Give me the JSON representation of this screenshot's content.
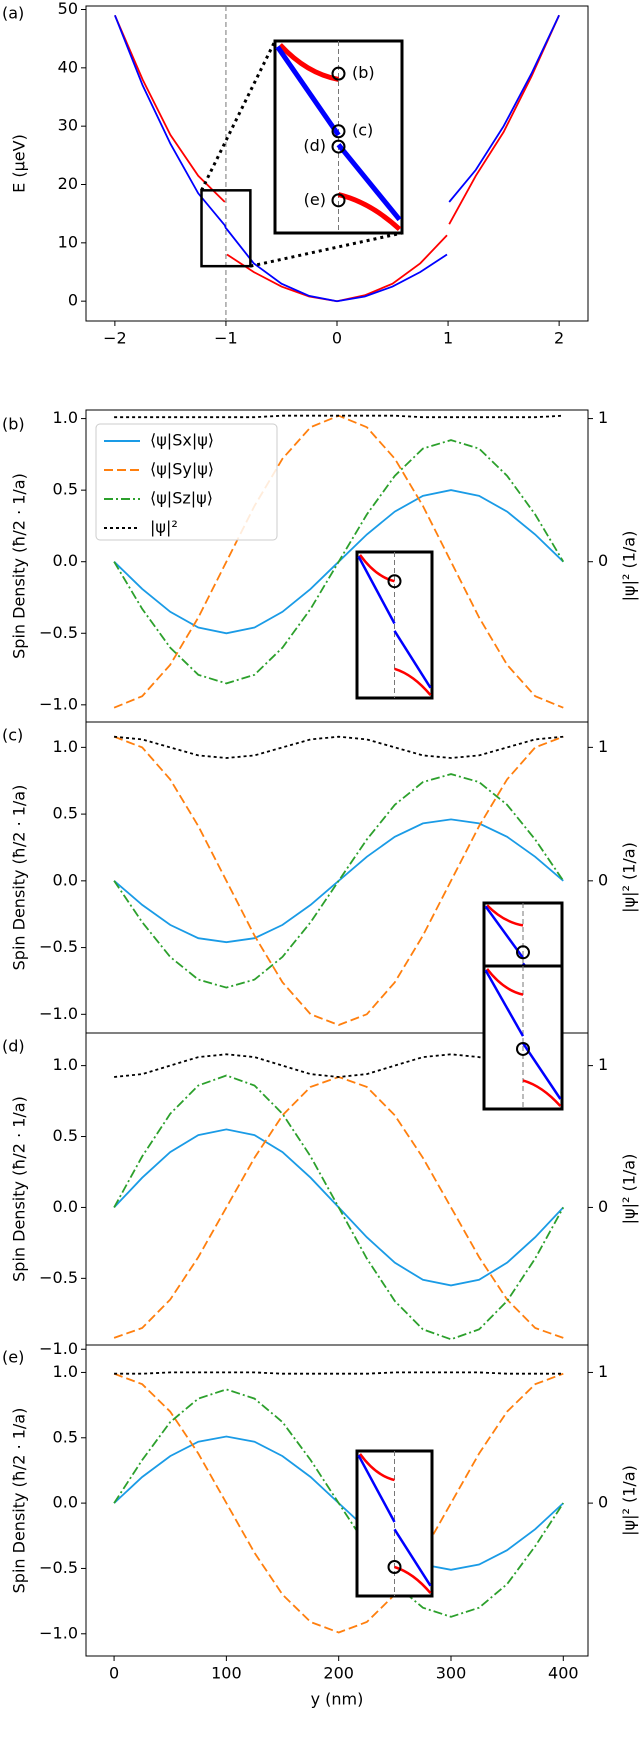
{
  "chart_data": [
    {
      "type": "line",
      "panel_label": "(a)",
      "ylabel": "E (μeV)",
      "x": [
        -2,
        -1.75,
        -1.5,
        -1.25,
        -1.01,
        -1,
        -0.99,
        -0.75,
        -0.5,
        -0.25,
        0,
        0.25,
        0.5,
        0.75,
        0.99,
        1,
        1.01,
        1.25,
        1.5,
        1.75,
        2
      ],
      "series": [
        {
          "color": "#ff0000",
          "dash": "solid",
          "values": [
            49,
            38,
            28.5,
            21.5,
            17,
            null,
            8,
            5,
            2.5,
            0.8,
            0,
            1,
            3,
            6.5,
            11.3,
            null,
            13.2,
            21.5,
            29,
            38.5,
            49
          ]
        },
        {
          "color": "#0000ff",
          "dash": "solid",
          "values": [
            49,
            37,
            27,
            18.5,
            13,
            12.5,
            12.3,
            6.5,
            3,
            0.9,
            0,
            0.8,
            2.5,
            5,
            8,
            null,
            17,
            22.5,
            30,
            39,
            49
          ]
        }
      ],
      "vlines": [
        -1
      ],
      "annotations": [
        "(b)",
        "(c)",
        "(d)",
        "(e)"
      ],
      "xlim": [
        -2.26,
        2.26
      ],
      "ylim": [
        -3.4,
        50.6
      ],
      "xticks": [
        {
          "value": -2,
          "label": "−2"
        },
        {
          "value": -1,
          "label": "−1"
        },
        0,
        1,
        2
      ],
      "yticks": [
        0,
        10,
        20,
        30,
        40,
        50
      ]
    },
    {
      "type": "line",
      "panel_label": "(b)",
      "ylabel": "Spin Density (ħ/2 · 1/a)",
      "y2label": "|ψ|² (1/a)",
      "x": [
        0,
        25,
        50,
        75,
        100,
        125,
        150,
        175,
        200,
        225,
        250,
        275,
        300,
        325,
        350,
        375,
        400
      ],
      "series": [
        {
          "name": "⟨ψ|Sx|ψ⟩",
          "color": "#1a9be6",
          "dash": "solid",
          "values": [
            0,
            -0.19,
            -0.35,
            -0.46,
            -0.5,
            -0.46,
            -0.35,
            -0.19,
            0,
            0.19,
            0.35,
            0.46,
            0.5,
            0.46,
            0.35,
            0.19,
            0
          ]
        },
        {
          "name": "⟨ψ|Sy|ψ⟩",
          "color": "#ff7f0e",
          "dash": "dashed",
          "values": [
            -1.02,
            -0.94,
            -0.72,
            -0.39,
            0,
            0.39,
            0.72,
            0.94,
            1.02,
            0.94,
            0.72,
            0.39,
            0,
            -0.39,
            -0.72,
            -0.94,
            -1.02
          ]
        },
        {
          "name": "⟨ψ|Sz|ψ⟩",
          "color": "#2ca02c",
          "dash": "dashdot",
          "values": [
            0,
            -0.33,
            -0.6,
            -0.79,
            -0.85,
            -0.79,
            -0.6,
            -0.33,
            0,
            0.33,
            0.6,
            0.79,
            0.85,
            0.79,
            0.6,
            0.33,
            0
          ]
        },
        {
          "name": "|ψ|²",
          "color": "#000000",
          "dash": "dotted",
          "axis": "y2",
          "values": [
            1.01,
            1.01,
            1.01,
            1.01,
            1.01,
            1.01,
            1.02,
            1.02,
            1.02,
            1.02,
            1.02,
            1.01,
            1.01,
            1.01,
            1.01,
            1.01,
            1.02
          ]
        }
      ],
      "xlim": [
        -25,
        422
      ],
      "ylim": [
        -1.12,
        1.06
      ],
      "y2lim": [
        -1.12,
        1.06
      ],
      "yticks": [
        {
          "value": -1,
          "label": "−1.0"
        },
        {
          "value": -0.5,
          "label": "−0.5"
        },
        {
          "value": 0,
          "label": "0.0"
        },
        {
          "value": 0.5,
          "label": "0.5"
        },
        {
          "value": 1,
          "label": "1.0"
        }
      ],
      "y2ticks": [
        0,
        1
      ]
    },
    {
      "type": "line",
      "panel_label": "(c)",
      "ylabel": "Spin Density (ħ/2 · 1/a)",
      "y2label": "|ψ|² (1/a)",
      "x": [
        0,
        25,
        50,
        75,
        100,
        125,
        150,
        175,
        200,
        225,
        250,
        275,
        300,
        325,
        350,
        375,
        400
      ],
      "series": [
        {
          "color": "#1a9be6",
          "dash": "solid",
          "values": [
            0,
            -0.18,
            -0.33,
            -0.43,
            -0.46,
            -0.43,
            -0.33,
            -0.18,
            0,
            0.18,
            0.33,
            0.43,
            0.46,
            0.43,
            0.33,
            0.18,
            0
          ]
        },
        {
          "color": "#ff7f0e",
          "dash": "dashed",
          "values": [
            1.08,
            1,
            0.76,
            0.41,
            0,
            -0.41,
            -0.76,
            -1,
            -1.08,
            -1,
            -0.76,
            -0.41,
            0,
            0.41,
            0.76,
            1,
            1.08
          ]
        },
        {
          "color": "#2ca02c",
          "dash": "dashdot",
          "values": [
            0,
            -0.31,
            -0.57,
            -0.74,
            -0.8,
            -0.74,
            -0.57,
            -0.31,
            0,
            0.31,
            0.57,
            0.74,
            0.8,
            0.74,
            0.57,
            0.31,
            0
          ]
        },
        {
          "color": "#000000",
          "dash": "dotted",
          "axis": "y2",
          "values": [
            1.08,
            1.06,
            1,
            0.94,
            0.92,
            0.94,
            1,
            1.06,
            1.08,
            1.06,
            1,
            0.94,
            0.92,
            0.94,
            1,
            1.06,
            1.08
          ]
        }
      ],
      "xlim": [
        -25,
        422
      ],
      "ylim": [
        -1.14,
        1.19
      ],
      "y2lim": [
        -1.14,
        1.19
      ],
      "yticks": [
        {
          "value": -1,
          "label": "−1.0"
        },
        {
          "value": -0.5,
          "label": "−0.5"
        },
        {
          "value": 0,
          "label": "0.0"
        },
        {
          "value": 0.5,
          "label": "0.5"
        },
        {
          "value": 1,
          "label": "1.0"
        }
      ],
      "y2ticks": [
        0,
        1
      ]
    },
    {
      "type": "line",
      "panel_label": "(d)",
      "ylabel": "Spin Density (ħ/2 · 1/a)",
      "y2label": "|ψ|² (1/a)",
      "x": [
        0,
        25,
        50,
        75,
        100,
        125,
        150,
        175,
        200,
        225,
        250,
        275,
        300,
        325,
        350,
        375,
        400
      ],
      "series": [
        {
          "color": "#1a9be6",
          "dash": "solid",
          "values": [
            0,
            0.21,
            0.39,
            0.51,
            0.55,
            0.51,
            0.39,
            0.21,
            0,
            -0.21,
            -0.39,
            -0.51,
            -0.55,
            -0.51,
            -0.39,
            -0.21,
            0
          ]
        },
        {
          "color": "#ff7f0e",
          "dash": "dashed",
          "values": [
            -0.92,
            -0.85,
            -0.65,
            -0.35,
            0,
            0.35,
            0.65,
            0.85,
            0.92,
            0.85,
            0.65,
            0.35,
            0,
            -0.35,
            -0.65,
            -0.85,
            -0.92
          ]
        },
        {
          "color": "#2ca02c",
          "dash": "dashdot",
          "values": [
            0,
            0.36,
            0.66,
            0.86,
            0.93,
            0.86,
            0.66,
            0.36,
            0,
            -0.36,
            -0.66,
            -0.86,
            -0.93,
            -0.86,
            -0.66,
            -0.36,
            0
          ]
        },
        {
          "color": "#000000",
          "dash": "dotted",
          "axis": "y2",
          "values": [
            0.92,
            0.94,
            1,
            1.06,
            1.08,
            1.06,
            1,
            0.94,
            0.92,
            0.94,
            1,
            1.06,
            1.08,
            1.06,
            1,
            0.94,
            0.92
          ]
        }
      ],
      "xlim": [
        -25,
        422
      ],
      "ylim": [
        -0.97,
        1.23
      ],
      "y2lim": [
        -0.97,
        1.23
      ],
      "yticks": [
        {
          "value": -1,
          "label": "−1.0"
        },
        {
          "value": -0.5,
          "label": "−0.5"
        },
        {
          "value": 0,
          "label": "0.0"
        },
        {
          "value": 0.5,
          "label": "0.5"
        },
        {
          "value": 1,
          "label": "1.0"
        }
      ],
      "y2ticks": [
        0,
        1
      ]
    },
    {
      "type": "line",
      "panel_label": "(e)",
      "ylabel": "Spin Density (ħ/2 · 1/a)",
      "y2label": "|ψ|² (1/a)",
      "xlabel": "y (nm)",
      "x": [
        0,
        25,
        50,
        75,
        100,
        125,
        150,
        175,
        200,
        225,
        250,
        275,
        300,
        325,
        350,
        375,
        400
      ],
      "series": [
        {
          "color": "#1a9be6",
          "dash": "solid",
          "values": [
            0,
            0.2,
            0.36,
            0.47,
            0.51,
            0.47,
            0.36,
            0.2,
            0,
            -0.2,
            -0.36,
            -0.47,
            -0.51,
            -0.47,
            -0.36,
            -0.2,
            0
          ]
        },
        {
          "color": "#ff7f0e",
          "dash": "dashed",
          "values": [
            0.99,
            0.91,
            0.7,
            0.38,
            0,
            -0.38,
            -0.7,
            -0.91,
            -0.99,
            -0.91,
            -0.7,
            -0.38,
            0,
            0.38,
            0.7,
            0.91,
            0.99
          ]
        },
        {
          "color": "#2ca02c",
          "dash": "dashdot",
          "values": [
            0,
            0.33,
            0.62,
            0.8,
            0.87,
            0.8,
            0.62,
            0.33,
            0,
            -0.33,
            -0.62,
            -0.8,
            -0.87,
            -0.8,
            -0.62,
            -0.33,
            0
          ]
        },
        {
          "color": "#000000",
          "dash": "dotted",
          "axis": "y2",
          "values": [
            0.99,
            0.99,
            1,
            1,
            1,
            1,
            0.99,
            0.99,
            0.99,
            0.99,
            1,
            1,
            1,
            1,
            0.99,
            0.99,
            0.99
          ]
        }
      ],
      "xlim": [
        -25,
        422
      ],
      "ylim": [
        -1.17,
        1.21
      ],
      "y2lim": [
        -1.17,
        1.21
      ],
      "xticks": [
        0,
        100,
        200,
        300,
        400
      ],
      "yticks": [
        {
          "value": -1,
          "label": "−1.0"
        },
        {
          "value": -0.5,
          "label": "−0.5"
        },
        {
          "value": 0,
          "label": "0.0"
        },
        {
          "value": 0.5,
          "label": "0.5"
        },
        {
          "value": 1,
          "label": "1.0"
        }
      ],
      "y2ticks": [
        0,
        1
      ]
    }
  ]
}
